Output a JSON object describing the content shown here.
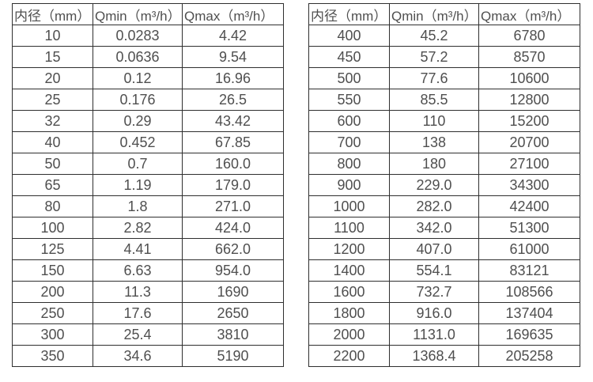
{
  "page": {
    "background_color": "#ffffff",
    "text_color": "#4f4f4f",
    "border_color": "#2f2f2f"
  },
  "tables": [
    {
      "name": "flow-rate-table-small-diameters",
      "headers": [
        "内径（mm）",
        "Qmin（m³/h）",
        "Qmax（m³/h）"
      ],
      "rows": [
        [
          "10",
          "0.0283",
          "4.42"
        ],
        [
          "15",
          "0.0636",
          "9.54"
        ],
        [
          "20",
          "0.12",
          "16.96"
        ],
        [
          "25",
          "0.176",
          "26.5"
        ],
        [
          "32",
          "0.29",
          "43.42"
        ],
        [
          "40",
          "0.452",
          "67.85"
        ],
        [
          "50",
          "0.7",
          "160.0"
        ],
        [
          "65",
          "1.19",
          "179.0"
        ],
        [
          "80",
          "1.8",
          "271.0"
        ],
        [
          "100",
          "2.82",
          "424.0"
        ],
        [
          "125",
          "4.41",
          "662.0"
        ],
        [
          "150",
          "6.63",
          "954.0"
        ],
        [
          "200",
          "11.3",
          "1690"
        ],
        [
          "250",
          "17.6",
          "2650"
        ],
        [
          "300",
          "25.4",
          "3810"
        ],
        [
          "350",
          "34.6",
          "5190"
        ]
      ]
    },
    {
      "name": "flow-rate-table-large-diameters",
      "headers": [
        "内径（mm）",
        "Qmin（m³/h）",
        "Qmax（m³/h）"
      ],
      "rows": [
        [
          "400",
          "45.2",
          "6780"
        ],
        [
          "450",
          "57.2",
          "8570"
        ],
        [
          "500",
          "77.6",
          "10600"
        ],
        [
          "550",
          "85.5",
          "12800"
        ],
        [
          "600",
          "110",
          "15200"
        ],
        [
          "700",
          "138",
          "20700"
        ],
        [
          "800",
          "180",
          "27100"
        ],
        [
          "900",
          "229.0",
          "34300"
        ],
        [
          "1000",
          "282.0",
          "42400"
        ],
        [
          "1100",
          "342.0",
          "51300"
        ],
        [
          "1200",
          "407.0",
          "61000"
        ],
        [
          "1400",
          "554.1",
          "83121"
        ],
        [
          "1600",
          "732.7",
          "108566"
        ],
        [
          "1800",
          "916.0",
          "137404"
        ],
        [
          "2000",
          "1131.0",
          "169635"
        ],
        [
          "2200",
          "1368.4",
          "205258"
        ]
      ]
    }
  ]
}
